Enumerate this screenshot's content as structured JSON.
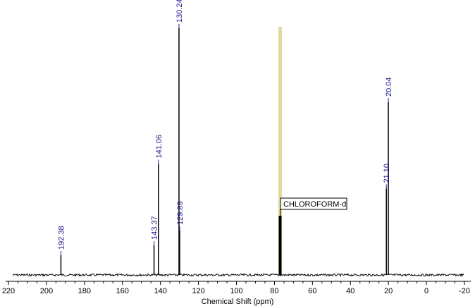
{
  "chart_data": {
    "type": "line",
    "title": "",
    "xlabel": "Chemical Shift (ppm)",
    "ylabel": "",
    "x_reversed": true,
    "xlim": [
      222,
      -22
    ],
    "ticks": [
      220,
      200,
      180,
      160,
      140,
      120,
      100,
      80,
      60,
      40,
      20,
      0,
      -20
    ],
    "tick_labels": [
      "220",
      "200",
      "180",
      "160",
      "140",
      "120",
      "100",
      "80",
      "60",
      "40",
      "20",
      "0",
      "-20"
    ],
    "y_range": [
      0,
      1
    ],
    "grid": false,
    "highlight_band": {
      "ppm": 77.0,
      "color": "#e0dca0"
    },
    "solvent_label": "CHLOROFORM-d",
    "peaks": [
      {
        "ppm": 192.38,
        "intensity": 0.08,
        "label": "192.38"
      },
      {
        "ppm": 143.37,
        "intensity": 0.12,
        "label": "143.37"
      },
      {
        "ppm": 141.06,
        "intensity": 0.45,
        "label": "141.06"
      },
      {
        "ppm": 130.24,
        "intensity": 1.0,
        "label": "130.24"
      },
      {
        "ppm": 129.89,
        "intensity": 0.18,
        "label": "129.89"
      },
      {
        "ppm": 77.0,
        "intensity": 0.24,
        "label": ""
      },
      {
        "ppm": 21.1,
        "intensity": 0.35,
        "label": "21.10"
      },
      {
        "ppm": 20.04,
        "intensity": 0.7,
        "label": "20.04"
      }
    ],
    "colors": {
      "spectrum": "#000000",
      "label": "#1a1a8c",
      "axis": "#000000"
    }
  }
}
